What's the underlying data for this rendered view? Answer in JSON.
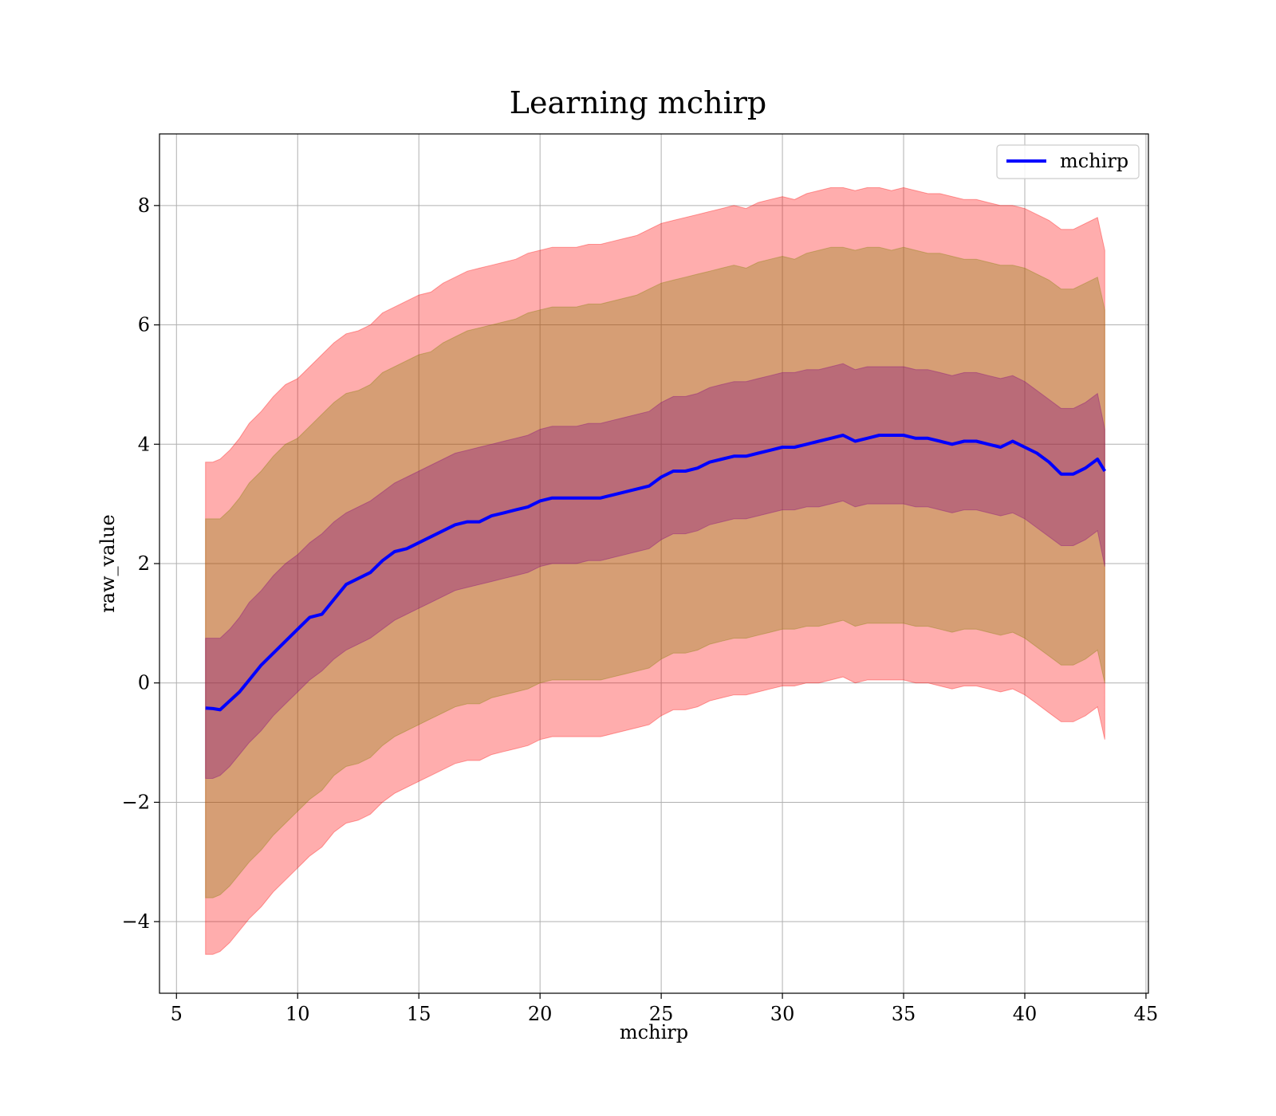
{
  "chart_data": {
    "type": "area",
    "title": "Learning mchirp",
    "xlabel": "mchirp",
    "ylabel": "raw_value",
    "xlim": [
      4.3,
      45.1
    ],
    "ylim": [
      -5.2,
      9.2
    ],
    "xticks": [
      5,
      10,
      15,
      20,
      25,
      30,
      35,
      40,
      45
    ],
    "xtick_labels": [
      "5",
      "10",
      "15",
      "20",
      "25",
      "30",
      "35",
      "40",
      "45"
    ],
    "yticks": [
      -4,
      -2,
      0,
      2,
      4,
      6,
      8
    ],
    "ytick_labels": [
      "−4",
      "−2",
      "0",
      "2",
      "4",
      "6",
      "8"
    ],
    "grid": true,
    "legend": {
      "position": "upper right",
      "entries": [
        "mchirp"
      ]
    },
    "colors": {
      "line": "#0000ff",
      "outer_band": "#ff0000",
      "middle_band": "#808000",
      "inner_band": "#800080"
    },
    "series": [
      {
        "name": "mchirp",
        "x": [
          6.2,
          6.5,
          6.8,
          7.2,
          7.6,
          8,
          8.5,
          9,
          9.5,
          10,
          10.5,
          11,
          11.5,
          12,
          12.5,
          13,
          13.5,
          14,
          14.5,
          15,
          15.5,
          16,
          16.5,
          17,
          17.5,
          18,
          18.5,
          19,
          19.5,
          20,
          20.5,
          21,
          21.5,
          22,
          22.5,
          23,
          23.5,
          24,
          24.5,
          25,
          25.5,
          26,
          26.5,
          27,
          27.5,
          28,
          28.5,
          29,
          29.5,
          30,
          30.5,
          31,
          31.5,
          32,
          32.5,
          33,
          33.5,
          34,
          34.5,
          35,
          35.5,
          36,
          36.5,
          37,
          37.5,
          38,
          38.5,
          39,
          39.5,
          40,
          40.5,
          41,
          41.5,
          42,
          42.5,
          43,
          43.3
        ],
        "values": [
          -0.42,
          -0.43,
          -0.45,
          -0.3,
          -0.15,
          0.05,
          0.3,
          0.5,
          0.7,
          0.9,
          1.1,
          1.15,
          1.4,
          1.65,
          1.75,
          1.85,
          2.05,
          2.2,
          2.25,
          2.35,
          2.45,
          2.55,
          2.65,
          2.7,
          2.7,
          2.8,
          2.85,
          2.9,
          2.95,
          3.05,
          3.1,
          3.1,
          3.1,
          3.1,
          3.1,
          3.15,
          3.2,
          3.25,
          3.3,
          3.45,
          3.55,
          3.55,
          3.6,
          3.7,
          3.75,
          3.8,
          3.8,
          3.85,
          3.9,
          3.95,
          3.95,
          4.0,
          4.05,
          4.1,
          4.15,
          4.05,
          4.1,
          4.15,
          4.15,
          4.15,
          4.1,
          4.1,
          4.05,
          4.0,
          4.05,
          4.05,
          4.0,
          3.95,
          4.05,
          3.95,
          3.85,
          3.7,
          3.5,
          3.5,
          3.6,
          3.75,
          3.55
        ]
      }
    ],
    "bands": [
      {
        "upper": [
          3.7,
          3.7,
          3.75,
          3.9,
          4.1,
          4.35,
          4.55,
          4.8,
          5.0,
          5.1,
          5.3,
          5.5,
          5.7,
          5.85,
          5.9,
          6.0,
          6.2,
          6.3,
          6.4,
          6.5,
          6.55,
          6.7,
          6.8,
          6.9,
          6.95,
          7.0,
          7.05,
          7.1,
          7.2,
          7.25,
          7.3,
          7.3,
          7.3,
          7.35,
          7.35,
          7.4,
          7.45,
          7.5,
          7.6,
          7.7,
          7.75,
          7.8,
          7.85,
          7.9,
          7.95,
          8.0,
          7.95,
          8.05,
          8.1,
          8.15,
          8.1,
          8.2,
          8.25,
          8.3,
          8.3,
          8.25,
          8.3,
          8.3,
          8.25,
          8.3,
          8.25,
          8.2,
          8.2,
          8.15,
          8.1,
          8.1,
          8.05,
          8.0,
          8.0,
          7.95,
          7.85,
          7.75,
          7.6,
          7.6,
          7.7,
          7.8,
          7.25
        ],
        "lower": [
          -4.55,
          -4.55,
          -4.5,
          -4.35,
          -4.15,
          -3.95,
          -3.75,
          -3.5,
          -3.3,
          -3.1,
          -2.9,
          -2.75,
          -2.5,
          -2.35,
          -2.3,
          -2.2,
          -2.0,
          -1.85,
          -1.75,
          -1.65,
          -1.55,
          -1.45,
          -1.35,
          -1.3,
          -1.3,
          -1.2,
          -1.15,
          -1.1,
          -1.05,
          -0.95,
          -0.9,
          -0.9,
          -0.9,
          -0.9,
          -0.9,
          -0.85,
          -0.8,
          -0.75,
          -0.7,
          -0.55,
          -0.45,
          -0.45,
          -0.4,
          -0.3,
          -0.25,
          -0.2,
          -0.2,
          -0.15,
          -0.1,
          -0.05,
          -0.05,
          0.0,
          0.0,
          0.05,
          0.1,
          0.0,
          0.05,
          0.05,
          0.05,
          0.05,
          0.0,
          0.0,
          -0.05,
          -0.1,
          -0.05,
          -0.05,
          -0.1,
          -0.15,
          -0.1,
          -0.2,
          -0.35,
          -0.5,
          -0.65,
          -0.65,
          -0.55,
          -0.4,
          -0.95
        ]
      },
      {
        "upper": [
          2.75,
          2.75,
          2.75,
          2.9,
          3.1,
          3.35,
          3.55,
          3.8,
          4.0,
          4.1,
          4.3,
          4.5,
          4.7,
          4.85,
          4.9,
          5.0,
          5.2,
          5.3,
          5.4,
          5.5,
          5.55,
          5.7,
          5.8,
          5.9,
          5.95,
          6.0,
          6.05,
          6.1,
          6.2,
          6.25,
          6.3,
          6.3,
          6.3,
          6.35,
          6.35,
          6.4,
          6.45,
          6.5,
          6.6,
          6.7,
          6.75,
          6.8,
          6.85,
          6.9,
          6.95,
          7.0,
          6.95,
          7.05,
          7.1,
          7.15,
          7.1,
          7.2,
          7.25,
          7.3,
          7.3,
          7.25,
          7.3,
          7.3,
          7.25,
          7.3,
          7.25,
          7.2,
          7.2,
          7.15,
          7.1,
          7.1,
          7.05,
          7.0,
          7.0,
          6.95,
          6.85,
          6.75,
          6.6,
          6.6,
          6.7,
          6.8,
          6.25
        ],
        "lower": [
          -3.6,
          -3.6,
          -3.55,
          -3.4,
          -3.2,
          -3.0,
          -2.8,
          -2.55,
          -2.35,
          -2.15,
          -1.95,
          -1.8,
          -1.55,
          -1.4,
          -1.35,
          -1.25,
          -1.05,
          -0.9,
          -0.8,
          -0.7,
          -0.6,
          -0.5,
          -0.4,
          -0.35,
          -0.35,
          -0.25,
          -0.2,
          -0.15,
          -0.1,
          0.0,
          0.05,
          0.05,
          0.05,
          0.05,
          0.05,
          0.1,
          0.15,
          0.2,
          0.25,
          0.4,
          0.5,
          0.5,
          0.55,
          0.65,
          0.7,
          0.75,
          0.75,
          0.8,
          0.85,
          0.9,
          0.9,
          0.95,
          0.95,
          1.0,
          1.05,
          0.95,
          1.0,
          1.0,
          1.0,
          1.0,
          0.95,
          0.95,
          0.9,
          0.85,
          0.9,
          0.9,
          0.85,
          0.8,
          0.85,
          0.75,
          0.6,
          0.45,
          0.3,
          0.3,
          0.4,
          0.55,
          0.0
        ]
      },
      {
        "upper": [
          0.75,
          0.75,
          0.75,
          0.9,
          1.1,
          1.35,
          1.55,
          1.8,
          2.0,
          2.15,
          2.35,
          2.5,
          2.7,
          2.85,
          2.95,
          3.05,
          3.2,
          3.35,
          3.45,
          3.55,
          3.65,
          3.75,
          3.85,
          3.9,
          3.95,
          4.0,
          4.05,
          4.1,
          4.15,
          4.25,
          4.3,
          4.3,
          4.3,
          4.35,
          4.35,
          4.4,
          4.45,
          4.5,
          4.55,
          4.7,
          4.8,
          4.8,
          4.85,
          4.95,
          5.0,
          5.05,
          5.05,
          5.1,
          5.15,
          5.2,
          5.2,
          5.25,
          5.25,
          5.3,
          5.35,
          5.25,
          5.3,
          5.3,
          5.3,
          5.3,
          5.25,
          5.25,
          5.2,
          5.15,
          5.2,
          5.2,
          5.15,
          5.1,
          5.15,
          5.05,
          4.9,
          4.75,
          4.6,
          4.6,
          4.7,
          4.85,
          4.25
        ],
        "lower": [
          -1.6,
          -1.6,
          -1.55,
          -1.4,
          -1.2,
          -1.0,
          -0.8,
          -0.55,
          -0.35,
          -0.15,
          0.05,
          0.2,
          0.4,
          0.55,
          0.65,
          0.75,
          0.9,
          1.05,
          1.15,
          1.25,
          1.35,
          1.45,
          1.55,
          1.6,
          1.65,
          1.7,
          1.75,
          1.8,
          1.85,
          1.95,
          2.0,
          2.0,
          2.0,
          2.05,
          2.05,
          2.1,
          2.15,
          2.2,
          2.25,
          2.4,
          2.5,
          2.5,
          2.55,
          2.65,
          2.7,
          2.75,
          2.75,
          2.8,
          2.85,
          2.9,
          2.9,
          2.95,
          2.95,
          3.0,
          3.05,
          2.95,
          3.0,
          3.0,
          3.0,
          3.0,
          2.95,
          2.95,
          2.9,
          2.85,
          2.9,
          2.9,
          2.85,
          2.8,
          2.85,
          2.75,
          2.6,
          2.45,
          2.3,
          2.3,
          2.4,
          2.55,
          1.95
        ]
      }
    ]
  }
}
